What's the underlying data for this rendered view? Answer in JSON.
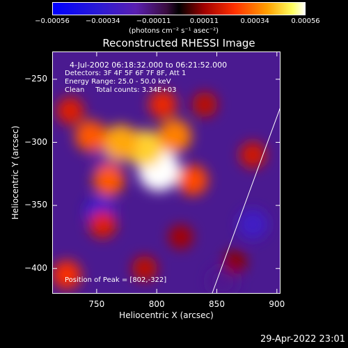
{
  "chart_data": {
    "type": "heatmap",
    "title": "Reconstructed RHESSI Image",
    "xlabel": "Heliocentric X (arcsec)",
    "ylabel": "Heliocentric Y (arcsec)",
    "xlim": [
      713,
      903
    ],
    "ylim": [
      -420,
      -228
    ],
    "x_ticks": [
      750,
      800,
      850,
      900
    ],
    "y_ticks": [
      -250,
      -300,
      -350,
      -400
    ],
    "colorbar": {
      "ticks": [
        "-0.00056",
        "-0.00034",
        "-0.00011",
        "0.00011",
        "0.00034",
        "0.00056"
      ],
      "unit_label": "(photons cm⁻² s⁻¹ asec⁻²)",
      "range": [
        -0.00056,
        0.00056
      ]
    },
    "annotations": {
      "time_range": "4-Jul-2002 06:18:32.000 to 06:21:52.000",
      "detectors": "Detectors: 3F 4F 5F 6F 7F 8F, Att 1",
      "energy": "Energy Range: 25.0 - 50.0 keV",
      "clean": "Clean     Total counts: 3.34E+03",
      "peak": "Position of Peak = [802,-322]"
    },
    "peak_position": [
      802,
      -322
    ],
    "limb_points": [
      [
        846,
        -420
      ],
      [
        903,
        -272
      ]
    ],
    "hot_regions": [
      {
        "x": 802,
        "y": -322,
        "v": 0.00056
      },
      {
        "x": 790,
        "y": -305,
        "v": 0.00045
      },
      {
        "x": 770,
        "y": -300,
        "v": 0.0004
      },
      {
        "x": 745,
        "y": -295,
        "v": 0.0003
      },
      {
        "x": 815,
        "y": -295,
        "v": 0.00035
      },
      {
        "x": 830,
        "y": -330,
        "v": 0.00028
      },
      {
        "x": 760,
        "y": -330,
        "v": 0.0003
      },
      {
        "x": 805,
        "y": -270,
        "v": 0.00022
      },
      {
        "x": 728,
        "y": -275,
        "v": 0.0002
      },
      {
        "x": 840,
        "y": -270,
        "v": 0.00015
      },
      {
        "x": 880,
        "y": -310,
        "v": 0.00018
      },
      {
        "x": 755,
        "y": -365,
        "v": 0.0002
      },
      {
        "x": 725,
        "y": -405,
        "v": 0.00024
      },
      {
        "x": 790,
        "y": -400,
        "v": 0.00015
      },
      {
        "x": 820,
        "y": -375,
        "v": 0.00012
      },
      {
        "x": 865,
        "y": -395,
        "v": 0.0001
      }
    ],
    "cold_regions": [
      {
        "x": 753,
        "y": -355,
        "v": -0.00034
      },
      {
        "x": 880,
        "y": -365,
        "v": -0.00028
      },
      {
        "x": 760,
        "y": -315,
        "v": -0.00018
      },
      {
        "x": 855,
        "y": -410,
        "v": -0.00015
      }
    ]
  },
  "timestamp": "29-Apr-2022 23:01"
}
